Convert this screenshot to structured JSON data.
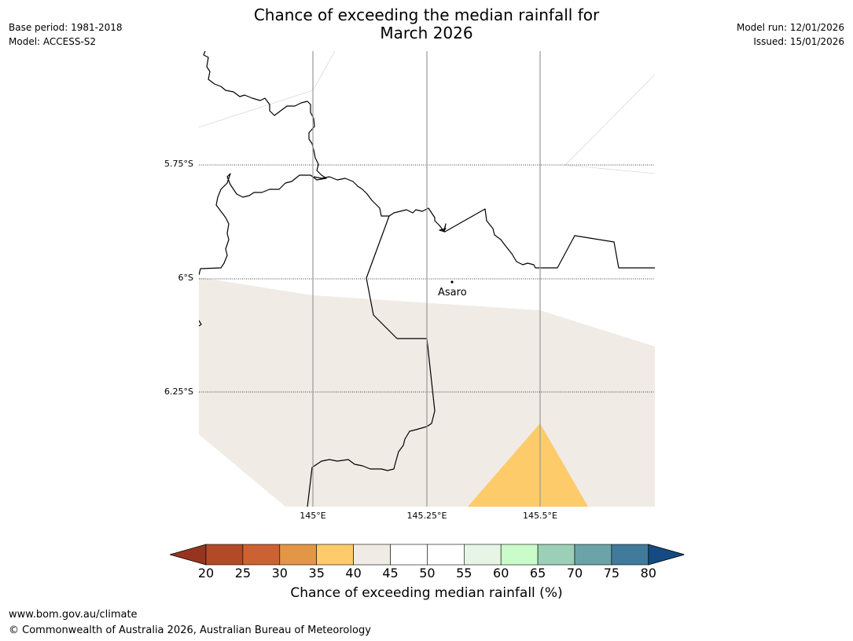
{
  "title": {
    "line1": "Chance of exceeding the median rainfall for",
    "line2": "March 2026"
  },
  "meta": {
    "base_period": "Base period: 1981-2018",
    "model": "Model: ACCESS-S2",
    "model_run": "Model run: 12/01/2026",
    "issued": "Issued: 15/01/2026"
  },
  "map": {
    "lat_labels": [
      "5.75°S",
      "6°S",
      "6.25°S"
    ],
    "lon_labels": [
      "145°E",
      "145.25°E",
      "145.5°E"
    ],
    "place": "Asaro",
    "colors": {
      "band_40_45": "#f0ebe5",
      "band_35_40": "#fdcb6a",
      "boundary": "#000000",
      "gridline": "#999999"
    }
  },
  "colorbar": {
    "ticks": [
      "20",
      "25",
      "30",
      "35",
      "40",
      "45",
      "50",
      "55",
      "60",
      "65",
      "70",
      "75",
      "80"
    ],
    "colors": [
      "#97341f",
      "#b24a28",
      "#cc6233",
      "#e29646",
      "#fdcb6a",
      "#f0ebe5",
      "#ffffff",
      "#ffffff",
      "#e6f5e6",
      "#c9fcc9",
      "#9ccfb8",
      "#6aa4a8",
      "#417a9a",
      "#154b82"
    ],
    "title": "Chance of exceeding median rainfall (%)"
  },
  "footer": {
    "url": "www.bom.gov.au/climate",
    "copyright": "© Commonwealth of Australia 2026, Australian Bureau of Meteorology"
  }
}
